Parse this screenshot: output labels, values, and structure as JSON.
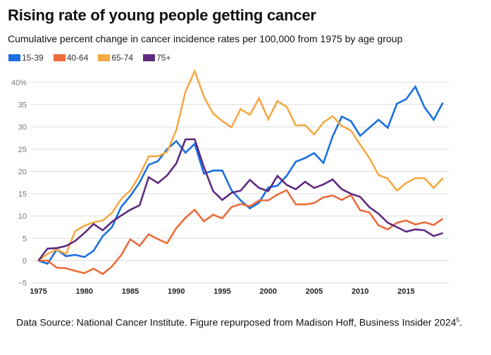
{
  "chart_data": {
    "type": "line",
    "title": "Rising rate of young people getting cancer",
    "subtitle": "Cumulative percent change in cancer incidence rates per 100,000 from 1975 by age group",
    "xlabel": "",
    "ylabel": "",
    "xlim": [
      1975,
      2019
    ],
    "ylim": [
      -5,
      42.5
    ],
    "grid": true,
    "legend_position": "top-left",
    "x_ticks": [
      1975,
      1980,
      1985,
      1990,
      1995,
      2000,
      2005,
      2010,
      2015
    ],
    "x_tick_labels": [
      "1975",
      "1980",
      "1985",
      "1990",
      "1995",
      "2000",
      "2005",
      "2010",
      "2015"
    ],
    "y_ticks": [
      -5,
      0,
      5,
      10,
      15,
      20,
      25,
      30,
      35,
      40
    ],
    "y_tick_labels": [
      "−5",
      "0",
      "5",
      "10",
      "15",
      "20",
      "25",
      "30",
      "35",
      "40%"
    ],
    "x": [
      1975,
      1976,
      1977,
      1978,
      1979,
      1980,
      1981,
      1982,
      1983,
      1984,
      1985,
      1986,
      1987,
      1988,
      1989,
      1990,
      1991,
      1992,
      1993,
      1994,
      1995,
      1996,
      1997,
      1998,
      1999,
      2000,
      2001,
      2002,
      2003,
      2004,
      2005,
      2006,
      2007,
      2008,
      2009,
      2010,
      2011,
      2012,
      2013,
      2014,
      2015,
      2016,
      2017,
      2018,
      2019
    ],
    "series": [
      {
        "name": "15-39",
        "color": "#1a6fe0",
        "values": [
          0,
          -0.7,
          2.5,
          1.0,
          1.3,
          0.8,
          2.2,
          5.5,
          7.5,
          12.0,
          14.5,
          17.5,
          21.5,
          22.3,
          25.0,
          26.8,
          24.2,
          26.2,
          19.5,
          20.2,
          20.2,
          15.8,
          13.5,
          11.7,
          13.0,
          16.4,
          16.8,
          19.0,
          22.2,
          23.0,
          24.1,
          21.9,
          27.8,
          32.3,
          31.3,
          28.0,
          29.8,
          31.6,
          29.8,
          35.2,
          36.2,
          39.0,
          34.4,
          31.6,
          35.4
        ]
      },
      {
        "name": "40-64",
        "color": "#ee6c3c",
        "values": [
          0,
          0,
          -1.6,
          -1.7,
          -2.3,
          -2.8,
          -1.8,
          -3.0,
          -1.3,
          1.2,
          4.8,
          3.3,
          5.9,
          4.8,
          3.9,
          7.3,
          9.6,
          11.4,
          8.8,
          10.3,
          9.5,
          12.0,
          12.7,
          12.2,
          13.5,
          13.5,
          14.8,
          15.8,
          12.6,
          12.6,
          12.9,
          14.2,
          14.6,
          13.6,
          14.7,
          11.3,
          10.8,
          7.9,
          7.0,
          8.5,
          9.0,
          8.1,
          8.6,
          8.0,
          9.4
        ]
      },
      {
        "name": "65-74",
        "color": "#f5a945",
        "values": [
          0,
          1.5,
          2.5,
          1.5,
          6.6,
          7.8,
          8.6,
          9.0,
          10.7,
          13.8,
          15.7,
          19.1,
          23.4,
          23.4,
          24.4,
          29.3,
          37.9,
          42.5,
          36.8,
          33.0,
          31.3,
          29.9,
          34.0,
          32.7,
          36.4,
          31.7,
          35.8,
          34.5,
          30.3,
          30.4,
          28.3,
          31.0,
          32.4,
          30.2,
          29.2,
          26.0,
          23.0,
          19.2,
          18.4,
          15.7,
          17.4,
          18.5,
          18.5,
          16.3,
          18.5
        ]
      },
      {
        "name": "75+",
        "color": "#5e2a7e",
        "values": [
          0,
          2.7,
          2.8,
          3.3,
          4.4,
          6.2,
          8.2,
          6.8,
          8.7,
          10.1,
          11.4,
          12.4,
          18.7,
          17.4,
          19.1,
          21.8,
          27.2,
          27.2,
          21.0,
          15.6,
          13.6,
          15.2,
          15.7,
          18.1,
          16.3,
          15.6,
          19.0,
          17.0,
          16.0,
          17.7,
          16.3,
          17.1,
          18.2,
          16.0,
          15.0,
          14.3,
          12.0,
          10.5,
          8.5,
          7.5,
          6.5,
          7.0,
          6.8,
          5.5,
          6.2
        ]
      }
    ]
  },
  "footer": {
    "text": "Data Source: National Cancer Institute. Figure repurposed from Madison Hoff, Business Insider 2024",
    "superscript": "5",
    "suffix": "."
  }
}
